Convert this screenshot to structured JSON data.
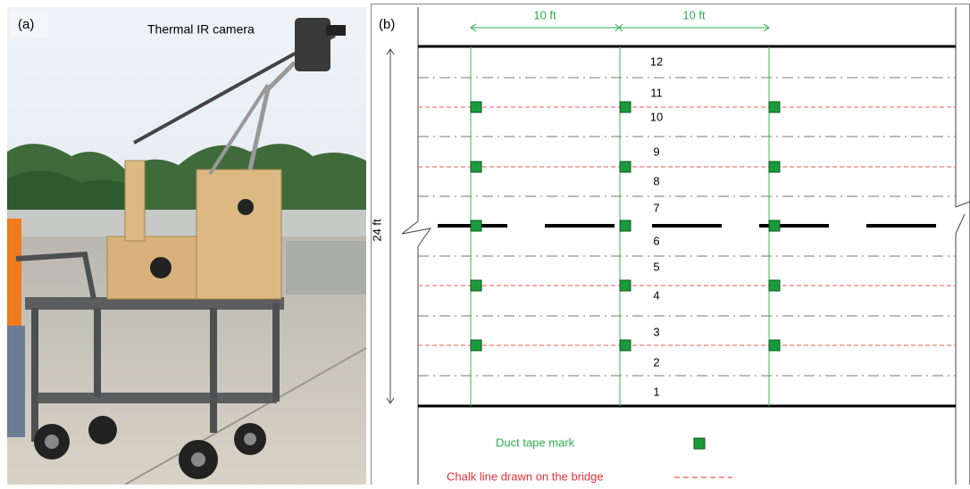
{
  "panel_a": {
    "label": "(a)",
    "caption": "Thermal IR camera"
  },
  "panel_b": {
    "label": "(b)",
    "spacing_labels": [
      "10 ft",
      "10 ft"
    ],
    "width_label": "24 ft",
    "row_numbers": [
      "1",
      "2",
      "3",
      "4",
      "5",
      "6",
      "7",
      "8",
      "9",
      "10",
      "11",
      "12"
    ],
    "legend": {
      "duct_tape": "Duct tape mark",
      "chalk_line": "Chalk line drawn on the bridge"
    }
  }
}
